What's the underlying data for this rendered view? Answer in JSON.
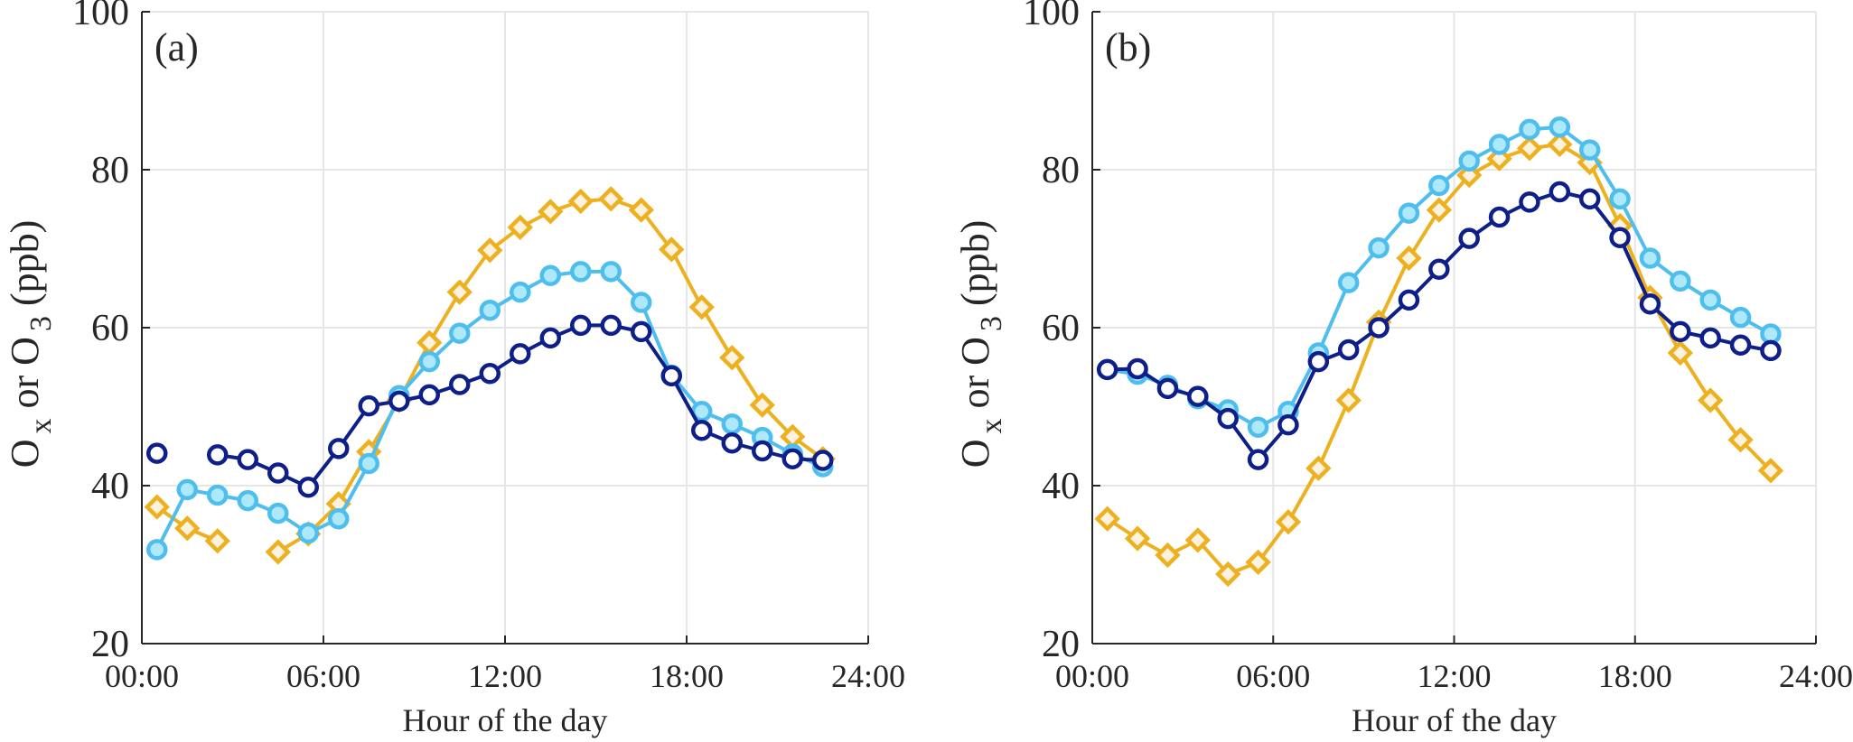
{
  "chart_data": [
    {
      "type": "line",
      "panel_label": "(a)",
      "xlabel": "Hour of the day",
      "ylabel_parts": [
        {
          "t": "O"
        },
        {
          "t": "x",
          "sub": true
        },
        {
          "t": " or O"
        },
        {
          "t": "3",
          "sub": true
        },
        {
          "t": " (ppb)"
        }
      ],
      "xlim": [
        0,
        24
      ],
      "ylim": [
        20,
        100
      ],
      "xticks": [
        0,
        6,
        12,
        18,
        24
      ],
      "xtick_labels": [
        "00:00",
        "06:00",
        "12:00",
        "18:00",
        "24:00"
      ],
      "yticks": [
        20,
        40,
        60,
        80,
        100
      ],
      "ytick_labels": [
        "20",
        "40",
        "60",
        "80",
        "100"
      ],
      "grid": true,
      "x": [
        0.5,
        1.5,
        2.5,
        3.5,
        4.5,
        5.5,
        6.5,
        7.5,
        8.5,
        9.5,
        10.5,
        11.5,
        12.5,
        13.5,
        14.5,
        15.5,
        16.5,
        17.5,
        18.5,
        19.5,
        20.5,
        21.5,
        22.5
      ],
      "series": [
        {
          "color": "#EDB120",
          "fill": "#FDF1DF",
          "marker": "diamond",
          "values": [
            37.3,
            34.6,
            33.0,
            null,
            31.6,
            33.9,
            37.7,
            44.3,
            50.8,
            58.1,
            64.5,
            69.8,
            72.7,
            74.7,
            76.0,
            76.3,
            74.9,
            69.9,
            62.6,
            56.2,
            50.2,
            46.2,
            43.4
          ]
        },
        {
          "color": "#4DBEEE",
          "fill": "#AEE9FB",
          "marker": "circle",
          "values": [
            31.9,
            39.5,
            38.8,
            38.1,
            36.5,
            34.0,
            35.8,
            42.8,
            51.4,
            55.7,
            59.3,
            62.2,
            64.5,
            66.6,
            67.1,
            67.1,
            63.2,
            54.0,
            49.4,
            47.8,
            46.1,
            44.0,
            42.4
          ]
        },
        {
          "color": "#0E1F8A",
          "fill": "#FFFFFF",
          "marker": "circle",
          "values": [
            44.1,
            null,
            43.9,
            43.3,
            41.6,
            39.8,
            44.7,
            50.1,
            50.7,
            51.5,
            52.8,
            54.2,
            56.7,
            58.7,
            60.3,
            60.3,
            59.5,
            53.9,
            47.0,
            45.4,
            44.4,
            43.4,
            43.2
          ]
        }
      ]
    },
    {
      "type": "line",
      "panel_label": "(b)",
      "xlabel": "Hour of the day",
      "ylabel_parts": [
        {
          "t": "O"
        },
        {
          "t": "x",
          "sub": true
        },
        {
          "t": " or O"
        },
        {
          "t": "3",
          "sub": true
        },
        {
          "t": " (ppb)"
        }
      ],
      "xlim": [
        0,
        24
      ],
      "ylim": [
        20,
        100
      ],
      "xticks": [
        0,
        6,
        12,
        18,
        24
      ],
      "xtick_labels": [
        "00:00",
        "06:00",
        "12:00",
        "18:00",
        "24:00"
      ],
      "yticks": [
        20,
        40,
        60,
        80,
        100
      ],
      "ytick_labels": [
        "20",
        "40",
        "60",
        "80",
        "100"
      ],
      "grid": true,
      "x": [
        0.5,
        1.5,
        2.5,
        3.5,
        4.5,
        5.5,
        6.5,
        7.5,
        8.5,
        9.5,
        10.5,
        11.5,
        12.5,
        13.5,
        14.5,
        15.5,
        16.5,
        17.5,
        18.5,
        19.5,
        20.5,
        21.5,
        22.5
      ],
      "series": [
        {
          "color": "#EDB120",
          "fill": "#FDF1DF",
          "marker": "diamond",
          "values": [
            35.8,
            33.3,
            31.2,
            33.1,
            28.8,
            30.3,
            35.4,
            42.2,
            50.8,
            60.7,
            68.8,
            74.9,
            79.3,
            81.4,
            82.7,
            83.2,
            80.9,
            72.9,
            63.8,
            56.8,
            50.8,
            45.8,
            41.9
          ]
        },
        {
          "color": "#4DBEEE",
          "fill": "#AEE9FB",
          "marker": "circle",
          "values": [
            54.7,
            54.1,
            52.7,
            51.0,
            49.6,
            47.4,
            49.4,
            56.8,
            65.7,
            70.1,
            74.5,
            78.0,
            81.1,
            83.2,
            85.1,
            85.4,
            82.5,
            76.3,
            68.8,
            65.9,
            63.5,
            61.3,
            59.2
          ]
        },
        {
          "color": "#0E1F8A",
          "fill": "#FFFFFF",
          "marker": "circle",
          "values": [
            54.7,
            54.8,
            52.3,
            51.3,
            48.5,
            43.3,
            47.7,
            55.7,
            57.2,
            60.0,
            63.5,
            67.4,
            71.3,
            74.0,
            75.9,
            77.2,
            76.3,
            71.4,
            63.0,
            59.5,
            58.7,
            57.8,
            57.1
          ]
        }
      ]
    }
  ]
}
